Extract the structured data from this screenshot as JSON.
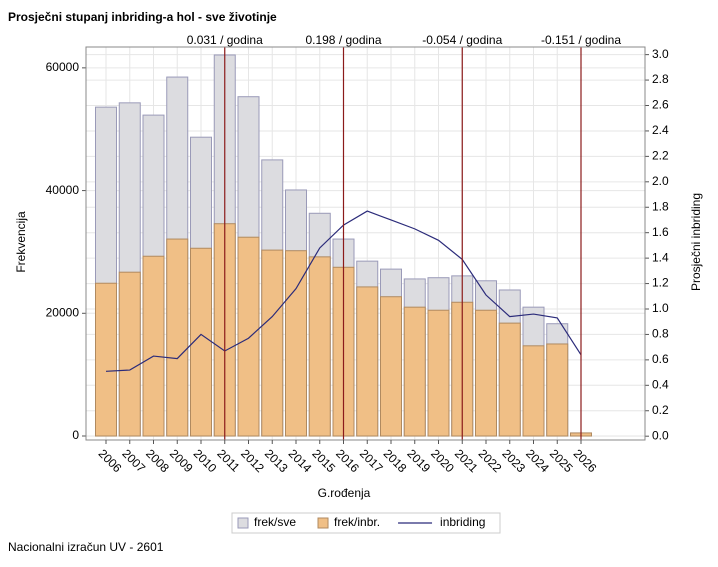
{
  "chart_data": {
    "type": "bar",
    "title": "Prosječni stupanj inbriding-a hol - sve životinje",
    "x_label": "G.rođenja",
    "y_label": "Frekvencija",
    "y2_label": "Prosječni inbriding",
    "footnote": "Nacionalni izračun UV - 2601",
    "categories": [
      "2006",
      "2007",
      "2008",
      "2009",
      "2010",
      "2011",
      "2012",
      "2013",
      "2014",
      "2015",
      "2016",
      "2017",
      "2018",
      "2019",
      "2020",
      "2021",
      "2022",
      "2023",
      "2024",
      "2025",
      "2026"
    ],
    "series": [
      {
        "name": "frek/sve",
        "type": "bar",
        "color": "#dcdce0",
        "values": [
          53600,
          54300,
          52300,
          58500,
          48700,
          62100,
          55300,
          45000,
          40100,
          36300,
          32100,
          28500,
          27200,
          25600,
          25800,
          26100,
          25300,
          23800,
          21000,
          18300,
          500
        ]
      },
      {
        "name": "frek/inbr.",
        "type": "bar",
        "color": "#f0bf86",
        "values": [
          24900,
          26700,
          29300,
          32100,
          30600,
          34600,
          32400,
          30300,
          30200,
          29200,
          27500,
          24300,
          22700,
          21000,
          20500,
          21800,
          20500,
          18400,
          14700,
          15000,
          500
        ]
      },
      {
        "name": "inbriding",
        "type": "line",
        "axis": "y2",
        "color": "#2b2b7a",
        "values": [
          0.51,
          0.52,
          0.63,
          0.61,
          0.8,
          0.67,
          0.77,
          0.94,
          1.16,
          1.48,
          1.66,
          1.77,
          1.7,
          1.63,
          1.54,
          1.39,
          1.11,
          0.94,
          0.96,
          0.93,
          0.64
        ]
      }
    ],
    "reference_lines": [
      {
        "x": "2011",
        "label": "0.031 / godina"
      },
      {
        "x": "2016",
        "label": "0.198 / godina"
      },
      {
        "x": "2021",
        "label": "-0.054 / godina"
      },
      {
        "x": "2026",
        "label": "-0.151 / godina"
      }
    ],
    "reference_color": "#8b1a1a",
    "ylim": [
      -650,
      63400
    ],
    "yticks": [
      0,
      20000,
      40000,
      60000
    ],
    "y2lim": [
      -0.03,
      3.06
    ],
    "y2ticks": [
      {
        "value": 0,
        "label": "0.0"
      },
      0.2,
      0.4,
      0.6,
      0.8,
      {
        "value": 1,
        "label": "1.0"
      },
      1.2,
      1.4,
      1.6,
      1.8,
      {
        "value": 2,
        "label": "2.0"
      },
      2.2,
      2.4,
      2.6,
      2.8,
      {
        "value": 3,
        "label": "3.0"
      }
    ],
    "grid": true,
    "legend": "bottom"
  }
}
